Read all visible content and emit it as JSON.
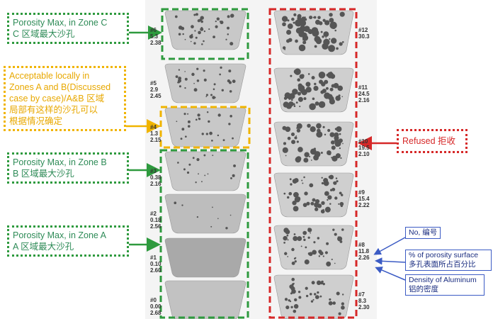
{
  "annotations": {
    "zone_c": [
      "Porosity Max, in Zone C",
      "C 区域最大沙孔"
    ],
    "acceptable": [
      "Acceptable locally in",
      "Zones A and B(Discussed",
      "case by case)/A&B 区域",
      "局部有这样的沙孔可以",
      "根据情况确定"
    ],
    "zone_b": [
      "Porosity Max, in Zone B",
      "B 区域最大沙孔"
    ],
    "zone_a": [
      "Porosity Max, in Zone A",
      "A 区域最大沙孔"
    ],
    "refused": "Refused 拒收",
    "legend_no": "No, 编号",
    "legend_porosity": [
      "% of porosity surface",
      "多孔表面所占百分比"
    ],
    "legend_density": [
      "Density of Aluminum",
      "铝的密度"
    ]
  },
  "samples": {
    "left": [
      [
        "#6",
        "5.3",
        "2.38"
      ],
      [
        "#5",
        "2.9",
        "2.45"
      ],
      [
        "#4",
        "1.3",
        "2.15"
      ],
      [
        "#3",
        "0.38",
        "2.16"
      ],
      [
        "#2",
        "0.18",
        "2.56"
      ],
      [
        "#1",
        "0.10",
        "2.60"
      ],
      [
        "#0",
        "0.00",
        "2.68"
      ]
    ],
    "right": [
      [
        "#12",
        "30.3"
      ],
      [
        "#11",
        "24.5",
        "2.16"
      ],
      [
        "#10",
        "19.5",
        "2.10"
      ],
      [
        "#9",
        "15.4",
        "2.22"
      ],
      [
        "#8",
        "11.8",
        "2.26"
      ],
      [
        "#7",
        "8.3",
        "2.30"
      ]
    ]
  }
}
